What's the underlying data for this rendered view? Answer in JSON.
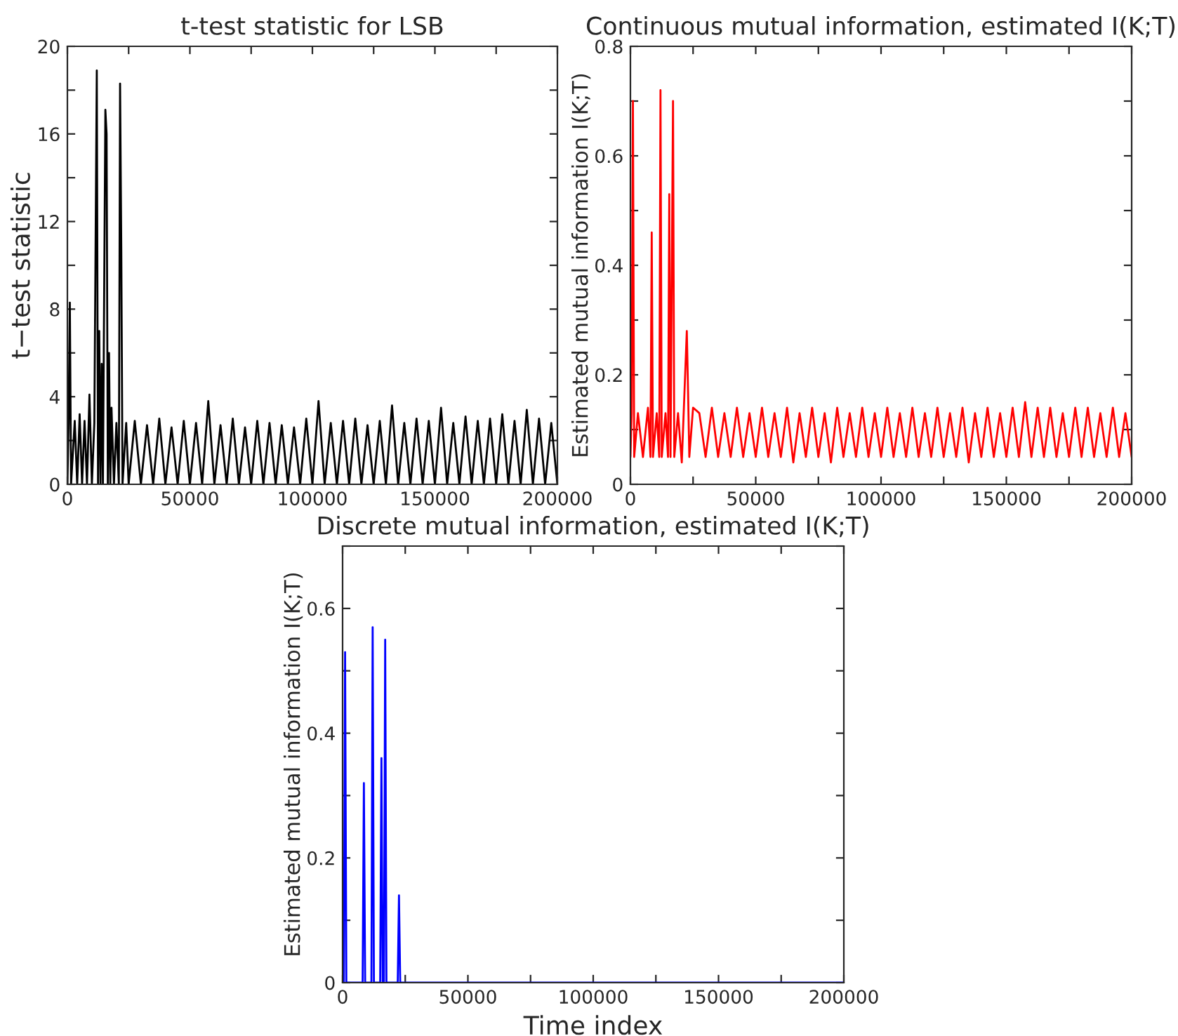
{
  "chart_data": [
    {
      "type": "line",
      "title": "t-test statistic for LSB",
      "ylabel": "t−test statistic",
      "series": [
        {
          "color": "#000000",
          "x": [
            0,
            500,
            1000,
            1500,
            3000,
            4000,
            5000,
            6000,
            7000,
            8000,
            9000,
            10000,
            11000,
            12000,
            12500,
            13000,
            13500,
            14000,
            14500,
            15500,
            16000,
            16500,
            17000,
            17500,
            18000,
            19000,
            20000,
            21000,
            21500,
            22000,
            22500,
            24000,
            25000,
            27500,
            30000,
            32500,
            35000,
            37500,
            40000,
            42500,
            45000,
            47500,
            50000,
            52500,
            55000,
            57500,
            60000,
            62500,
            65000,
            67500,
            70000,
            72500,
            75000,
            77500,
            80000,
            82500,
            85000,
            87500,
            90000,
            92500,
            95000,
            97500,
            100000,
            102500,
            105000,
            107500,
            110000,
            112500,
            115000,
            117500,
            120000,
            122500,
            125000,
            127500,
            130000,
            132500,
            135000,
            137500,
            140000,
            142500,
            145000,
            147500,
            150000,
            152500,
            155000,
            157500,
            160000,
            162500,
            165000,
            167500,
            170000,
            172500,
            175000,
            177500,
            180000,
            182500,
            185000,
            187500,
            190000,
            192500,
            195000,
            197500,
            200000
          ],
          "values": [
            0,
            2.8,
            8.3,
            0,
            2.9,
            0,
            3.2,
            0,
            2.9,
            0,
            4.1,
            0,
            2.8,
            18.9,
            0,
            7.0,
            0,
            5.5,
            0,
            17.1,
            16.0,
            0,
            6.0,
            0,
            3.5,
            0,
            2.8,
            0,
            18.3,
            10.7,
            0,
            2.8,
            0,
            2.9,
            0,
            2.7,
            0,
            3.0,
            0,
            2.6,
            0,
            2.9,
            0,
            2.8,
            0,
            3.8,
            0,
            2.7,
            0,
            3.0,
            0,
            2.6,
            0,
            2.9,
            0,
            2.8,
            0,
            2.7,
            0,
            2.6,
            0,
            3.0,
            0,
            3.8,
            0,
            2.8,
            0,
            2.9,
            0,
            3.0,
            0,
            2.7,
            0,
            2.9,
            0,
            3.6,
            0,
            2.8,
            0,
            3.0,
            0,
            2.9,
            0,
            3.5,
            0,
            2.8,
            0,
            3.1,
            0,
            2.9,
            0,
            3.0,
            0,
            3.2,
            0,
            2.9,
            0,
            3.4,
            0,
            3.0,
            0,
            2.8,
            0
          ]
        }
      ],
      "xlim": [
        0,
        200000
      ],
      "xticks": [
        0,
        {
          "value": 25000,
          "label": null
        },
        50000,
        {
          "value": 75000,
          "label": null
        },
        100000,
        {
          "value": 125000,
          "label": null
        },
        150000,
        {
          "value": 175000,
          "label": null
        },
        200000
      ],
      "ylim": [
        0,
        20
      ],
      "yticks": [
        0,
        {
          "value": 2,
          "label": null
        },
        4,
        {
          "value": 6,
          "label": null
        },
        8,
        {
          "value": 10,
          "label": null
        },
        12,
        {
          "value": 14,
          "label": null
        },
        16,
        {
          "value": 18,
          "label": null
        },
        20
      ],
      "grid": false,
      "legend": false,
      "marker": "none",
      "line_style": "solid"
    },
    {
      "type": "line",
      "title": "Continuous mutual information, estimated I(K;T)",
      "ylabel": "Estimated mutual information I(K;T)",
      "series": [
        {
          "color": "#ff0000",
          "x": [
            0,
            500,
            1000,
            1500,
            3000,
            5000,
            7000,
            8000,
            8500,
            9000,
            10500,
            11500,
            12000,
            12500,
            14000,
            15000,
            15500,
            16000,
            17000,
            17500,
            19000,
            20500,
            22500,
            23000,
            23500,
            25000,
            27500,
            30000,
            32500,
            35000,
            37500,
            40000,
            42500,
            45000,
            47500,
            50000,
            52500,
            55000,
            57500,
            60000,
            62500,
            65000,
            67500,
            70000,
            72500,
            75000,
            77500,
            80000,
            82500,
            85000,
            87500,
            90000,
            92500,
            95000,
            97500,
            100000,
            102500,
            105000,
            107500,
            110000,
            112500,
            115000,
            117500,
            120000,
            122500,
            125000,
            127500,
            130000,
            132500,
            135000,
            137500,
            140000,
            142500,
            145000,
            147500,
            150000,
            152500,
            155000,
            157500,
            160000,
            162500,
            165000,
            167500,
            170000,
            172500,
            175000,
            177500,
            180000,
            182500,
            185000,
            187500,
            190000,
            192500,
            195000,
            197500,
            200000
          ],
          "values": [
            0.05,
            0.13,
            0.7,
            0.05,
            0.13,
            0.05,
            0.14,
            0.05,
            0.46,
            0.05,
            0.13,
            0.05,
            0.72,
            0.05,
            0.13,
            0.05,
            0.53,
            0.05,
            0.7,
            0.05,
            0.13,
            0.04,
            0.28,
            0.17,
            0.05,
            0.14,
            0.13,
            0.05,
            0.14,
            0.05,
            0.13,
            0.05,
            0.14,
            0.05,
            0.13,
            0.05,
            0.14,
            0.05,
            0.13,
            0.05,
            0.14,
            0.04,
            0.13,
            0.05,
            0.14,
            0.05,
            0.13,
            0.04,
            0.14,
            0.05,
            0.13,
            0.05,
            0.14,
            0.05,
            0.13,
            0.05,
            0.14,
            0.05,
            0.13,
            0.05,
            0.14,
            0.05,
            0.13,
            0.05,
            0.14,
            0.05,
            0.13,
            0.05,
            0.14,
            0.04,
            0.13,
            0.05,
            0.14,
            0.05,
            0.13,
            0.05,
            0.14,
            0.05,
            0.15,
            0.05,
            0.14,
            0.05,
            0.14,
            0.05,
            0.13,
            0.05,
            0.14,
            0.05,
            0.14,
            0.05,
            0.13,
            0.05,
            0.14,
            0.05,
            0.13,
            0.05
          ]
        }
      ],
      "xlim": [
        0,
        200000
      ],
      "xticks": [
        0,
        {
          "value": 25000,
          "label": null
        },
        50000,
        {
          "value": 75000,
          "label": null
        },
        100000,
        {
          "value": 125000,
          "label": null
        },
        150000,
        {
          "value": 175000,
          "label": null
        },
        200000
      ],
      "ylim": [
        0,
        0.8
      ],
      "yticks": [
        0,
        {
          "value": 0.1,
          "label": null
        },
        0.2,
        {
          "value": 0.3,
          "label": null
        },
        0.4,
        {
          "value": 0.5,
          "label": null
        },
        0.6,
        {
          "value": 0.7,
          "label": null
        },
        0.8
      ],
      "grid": false,
      "legend": false,
      "marker": "none",
      "line_style": "solid"
    },
    {
      "type": "line",
      "title": "Discrete mutual information, estimated I(K;T)",
      "xlabel": "Time index",
      "ylabel": "Estimated mutual information I(K;T)",
      "series": [
        {
          "color": "#0000ff",
          "x": [
            0,
            500,
            1000,
            1500,
            8000,
            8500,
            9000,
            11500,
            12000,
            12500,
            15000,
            15500,
            16000,
            16500,
            17000,
            17500,
            22000,
            22500,
            23000,
            200000
          ],
          "values": [
            0,
            0,
            0.53,
            0,
            0,
            0.32,
            0,
            0,
            0.57,
            0,
            0,
            0.36,
            0,
            0,
            0.55,
            0,
            0,
            0.14,
            0,
            0
          ]
        }
      ],
      "xlim": [
        0,
        200000
      ],
      "xticks": [
        0,
        {
          "value": 25000,
          "label": null
        },
        50000,
        {
          "value": 75000,
          "label": null
        },
        100000,
        {
          "value": 125000,
          "label": null
        },
        150000,
        {
          "value": 175000,
          "label": null
        },
        200000
      ],
      "ylim": [
        0,
        0.7
      ],
      "yticks": [
        0,
        {
          "value": 0.1,
          "label": null
        },
        0.2,
        {
          "value": 0.3,
          "label": null
        },
        0.4,
        {
          "value": 0.5,
          "label": null
        },
        0.6,
        {
          "value": 0.7,
          "label": null
        }
      ],
      "grid": false,
      "legend": false,
      "marker": "none",
      "line_style": "solid"
    }
  ]
}
